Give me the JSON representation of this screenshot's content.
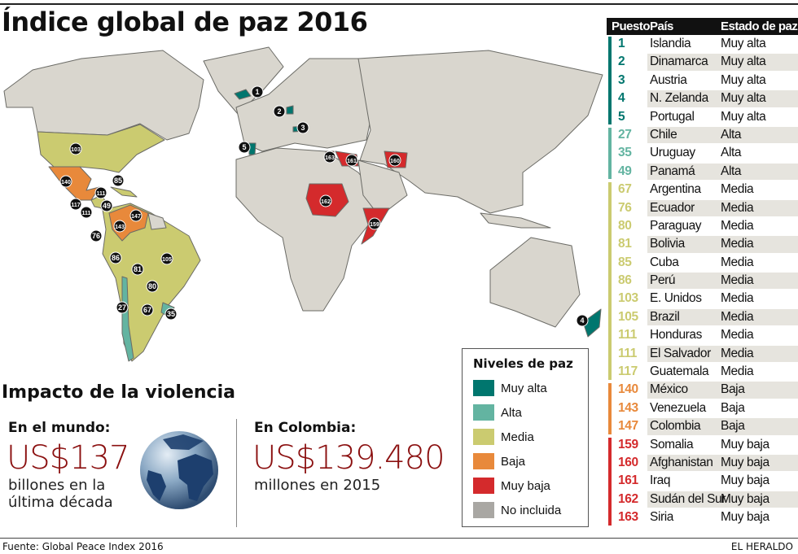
{
  "title": "Índice global de paz 2016",
  "colors": {
    "muy_alta": "#00766e",
    "alta": "#63b4a1",
    "media": "#cbcb70",
    "baja": "#e8893b",
    "muy_baja": "#d42a2c",
    "no_incluida": "#a9a7a3",
    "land": "#d9d6ce",
    "border": "#6b6b66",
    "money": "#8b1010"
  },
  "table": {
    "headers": [
      "Puesto",
      "País",
      "Estado de paz"
    ],
    "groups": [
      {
        "level": "muy_alta",
        "rows": [
          [
            "1",
            "Islandia",
            "Muy alta"
          ],
          [
            "2",
            "Dinamarca",
            "Muy alta"
          ],
          [
            "3",
            "Austria",
            "Muy alta"
          ],
          [
            "4",
            "N. Zelanda",
            "Muy alta"
          ],
          [
            "5",
            "Portugal",
            "Muy alta"
          ]
        ]
      },
      {
        "level": "alta",
        "rows": [
          [
            "27",
            "Chile",
            "Alta"
          ],
          [
            "35",
            "Uruguay",
            "Alta"
          ],
          [
            "49",
            "Panamá",
            "Alta"
          ]
        ]
      },
      {
        "level": "media",
        "rows": [
          [
            "67",
            "Argentina",
            "Media"
          ],
          [
            "76",
            "Ecuador",
            "Media"
          ],
          [
            "80",
            "Paraguay",
            "Media"
          ],
          [
            "81",
            "Bolivia",
            "Media"
          ],
          [
            "85",
            "Cuba",
            "Media"
          ],
          [
            "86",
            "Perú",
            "Media"
          ],
          [
            "103",
            "E. Unidos",
            "Media"
          ],
          [
            "105",
            "Brazil",
            "Media"
          ],
          [
            "111",
            "Honduras",
            "Media"
          ],
          [
            "111",
            "El Salvador",
            "Media"
          ],
          [
            "117",
            "Guatemala",
            "Media"
          ]
        ]
      },
      {
        "level": "baja",
        "rows": [
          [
            "140",
            "México",
            "Baja"
          ],
          [
            "143",
            "Venezuela",
            "Baja"
          ],
          [
            "147",
            "Colombia",
            "Baja"
          ]
        ]
      },
      {
        "level": "muy_baja",
        "rows": [
          [
            "159",
            "Somalia",
            "Muy baja"
          ],
          [
            "160",
            "Afghanistan",
            "Muy baja"
          ],
          [
            "161",
            "Iraq",
            "Muy baja"
          ],
          [
            "162",
            "Sudán del Sur",
            "Muy baja"
          ],
          [
            "163",
            "Siria",
            "Muy baja"
          ]
        ]
      }
    ]
  },
  "legend": {
    "title": "Niveles de paz",
    "items": [
      {
        "label": "Muy alta",
        "level": "muy_alta"
      },
      {
        "label": "Alta",
        "level": "alta"
      },
      {
        "label": "Media",
        "level": "media"
      },
      {
        "label": "Baja",
        "level": "baja"
      },
      {
        "label": "Muy baja",
        "level": "muy_baja"
      },
      {
        "label": "No incluida",
        "level": "no_incluida"
      }
    ]
  },
  "map": {
    "markers": [
      "1",
      "2",
      "3",
      "4",
      "5",
      "163",
      "161",
      "160",
      "162",
      "159",
      "103",
      "140",
      "85",
      "111",
      "117",
      "111",
      "49",
      "147",
      "143",
      "76",
      "86",
      "81",
      "105",
      "80",
      "27",
      "67",
      "35"
    ]
  },
  "impact": {
    "heading": "Impacto de la violencia",
    "world": {
      "label": "En el mundo:",
      "amount": "US$137",
      "desc1": "billones en la",
      "desc2": "última década"
    },
    "colombia": {
      "label": "En Colombia:",
      "amount": "US$139.480",
      "desc1": "millones en 2015"
    }
  },
  "footer": {
    "source": "Fuente: Global Peace Index 2016",
    "brand": "EL HERALDO"
  }
}
